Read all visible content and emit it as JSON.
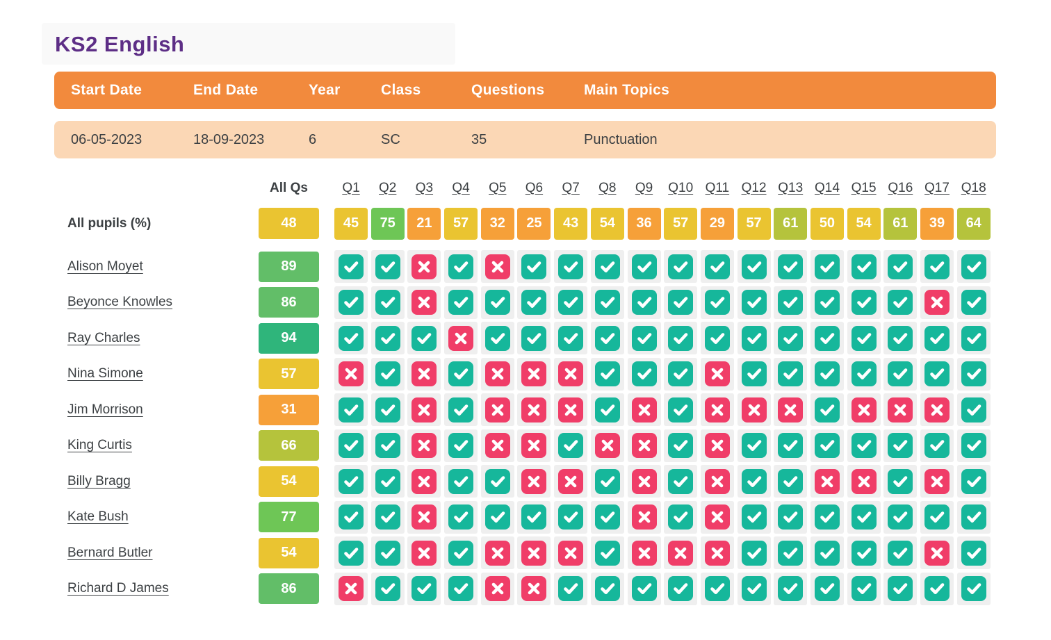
{
  "title": "KS2 English",
  "assessment": {
    "headers": [
      "Start Date",
      "End Date",
      "Year",
      "Class",
      "Questions",
      "Main Topics"
    ],
    "values": [
      "06-05-2023",
      "18-09-2023",
      "6",
      "SC",
      "35",
      "Punctuation"
    ]
  },
  "grid": {
    "all_qs_label": "All Qs",
    "question_labels": [
      "Q1",
      "Q2",
      "Q3",
      "Q4",
      "Q5",
      "Q6",
      "Q7",
      "Q8",
      "Q9",
      "Q10",
      "Q11",
      "Q12",
      "Q13",
      "Q14",
      "Q15",
      "Q16",
      "Q17",
      "Q18"
    ],
    "all_pupils": {
      "label": "All pupils (%)",
      "overall": 48,
      "per_question": [
        45,
        75,
        21,
        57,
        32,
        25,
        43,
        54,
        36,
        57,
        29,
        57,
        61,
        50,
        54,
        61,
        39,
        64
      ]
    },
    "pupils": [
      {
        "name": "Alison Moyet",
        "score": 89,
        "answers": [
          1,
          1,
          0,
          1,
          0,
          1,
          1,
          1,
          1,
          1,
          1,
          1,
          1,
          1,
          1,
          1,
          1,
          1
        ]
      },
      {
        "name": "Beyonce Knowles",
        "score": 86,
        "answers": [
          1,
          1,
          0,
          1,
          1,
          1,
          1,
          1,
          1,
          1,
          1,
          1,
          1,
          1,
          1,
          1,
          0,
          1
        ]
      },
      {
        "name": "Ray Charles",
        "score": 94,
        "answers": [
          1,
          1,
          1,
          0,
          1,
          1,
          1,
          1,
          1,
          1,
          1,
          1,
          1,
          1,
          1,
          1,
          1,
          1
        ]
      },
      {
        "name": "Nina Simone",
        "score": 57,
        "answers": [
          0,
          1,
          0,
          1,
          0,
          0,
          0,
          1,
          1,
          1,
          0,
          1,
          1,
          1,
          1,
          1,
          1,
          1
        ]
      },
      {
        "name": "Jim Morrison",
        "score": 31,
        "answers": [
          1,
          1,
          0,
          1,
          0,
          0,
          0,
          1,
          0,
          1,
          0,
          0,
          0,
          1,
          0,
          0,
          0,
          1
        ]
      },
      {
        "name": "King Curtis",
        "score": 66,
        "answers": [
          1,
          1,
          0,
          1,
          0,
          0,
          1,
          0,
          0,
          1,
          0,
          1,
          1,
          1,
          1,
          1,
          1,
          1
        ]
      },
      {
        "name": "Billy Bragg",
        "score": 54,
        "answers": [
          1,
          1,
          0,
          1,
          1,
          0,
          0,
          1,
          0,
          1,
          0,
          1,
          1,
          0,
          0,
          1,
          0,
          1
        ]
      },
      {
        "name": "Kate Bush",
        "score": 77,
        "answers": [
          1,
          1,
          0,
          1,
          1,
          1,
          1,
          1,
          0,
          1,
          0,
          1,
          1,
          1,
          1,
          1,
          1,
          1
        ]
      },
      {
        "name": "Bernard Butler",
        "score": 54,
        "answers": [
          1,
          1,
          0,
          1,
          0,
          0,
          0,
          1,
          0,
          0,
          0,
          1,
          1,
          1,
          1,
          1,
          0,
          1
        ]
      },
      {
        "name": "Richard D James",
        "score": 86,
        "answers": [
          0,
          1,
          1,
          1,
          0,
          0,
          1,
          1,
          1,
          1,
          1,
          1,
          1,
          1,
          1,
          1,
          1,
          1
        ]
      }
    ]
  },
  "colors": {
    "title": "#5d2e86",
    "banner_header_bg": "#f28a3d",
    "banner_data_bg": "#fbd7b5",
    "correct": "#16b79b",
    "incorrect": "#f03d68",
    "cell_bg": "#efefef",
    "score_bands": [
      {
        "min": 90,
        "color": "#2fb57b"
      },
      {
        "min": 80,
        "color": "#62be68"
      },
      {
        "min": 70,
        "color": "#6ec656"
      },
      {
        "min": 60,
        "color": "#b5c33c"
      },
      {
        "min": 40,
        "color": "#eac431"
      },
      {
        "min": 0,
        "color": "#f6a039"
      }
    ]
  },
  "icons": {
    "correct": "check-icon",
    "incorrect": "cross-icon"
  }
}
